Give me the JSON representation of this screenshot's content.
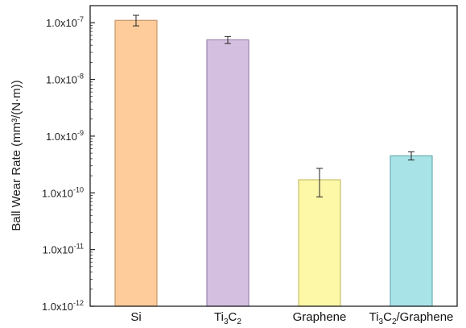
{
  "chart_data": {
    "type": "bar",
    "title": "",
    "xlabel": "",
    "ylabel": "Ball Wear Rate (mm³/(N·m))",
    "yscale": "log",
    "ylim": [
      1e-12,
      2e-07
    ],
    "y_ticks": [
      {
        "value": 1e-12,
        "mantissa": "1.0x10",
        "exp": "-12"
      },
      {
        "value": 1e-11,
        "mantissa": "1.0x10",
        "exp": "-11"
      },
      {
        "value": 1e-10,
        "mantissa": "1.0x10",
        "exp": "-10"
      },
      {
        "value": 1e-09,
        "mantissa": "1.0x10",
        "exp": "-9"
      },
      {
        "value": 1e-08,
        "mantissa": "1.0x10",
        "exp": "-8"
      },
      {
        "value": 1e-07,
        "mantissa": "1.0x10",
        "exp": "-7"
      }
    ],
    "categories": [
      "Si",
      "Ti3C2",
      "Graphene",
      "Ti3C2/Graphene"
    ],
    "category_labels": [
      [
        {
          "t": "Si"
        }
      ],
      [
        {
          "t": "Ti"
        },
        {
          "t": "3",
          "sub": true
        },
        {
          "t": "C"
        },
        {
          "t": "2",
          "sub": true
        }
      ],
      [
        {
          "t": "Graphene"
        }
      ],
      [
        {
          "t": "Ti"
        },
        {
          "t": "3",
          "sub": true
        },
        {
          "t": "C"
        },
        {
          "t": "2",
          "sub": true
        },
        {
          "t": "/Graphene"
        }
      ]
    ],
    "values": [
      1.1e-07,
      5e-08,
      1.7e-10,
      4.5e-10
    ],
    "error_low": [
      8.8e-08,
      4.3e-08,
      8.5e-11,
      3.8e-10
    ],
    "error_high": [
      1.35e-07,
      5.7e-08,
      2.7e-10,
      5.3e-10
    ],
    "colors": [
      "#fdcc9a",
      "#d4bfe0",
      "#fdf8a8",
      "#a8e3e8"
    ],
    "border_colors": [
      "#c8966a",
      "#9c86ad",
      "#c4be6a",
      "#6aaeb4"
    ]
  }
}
